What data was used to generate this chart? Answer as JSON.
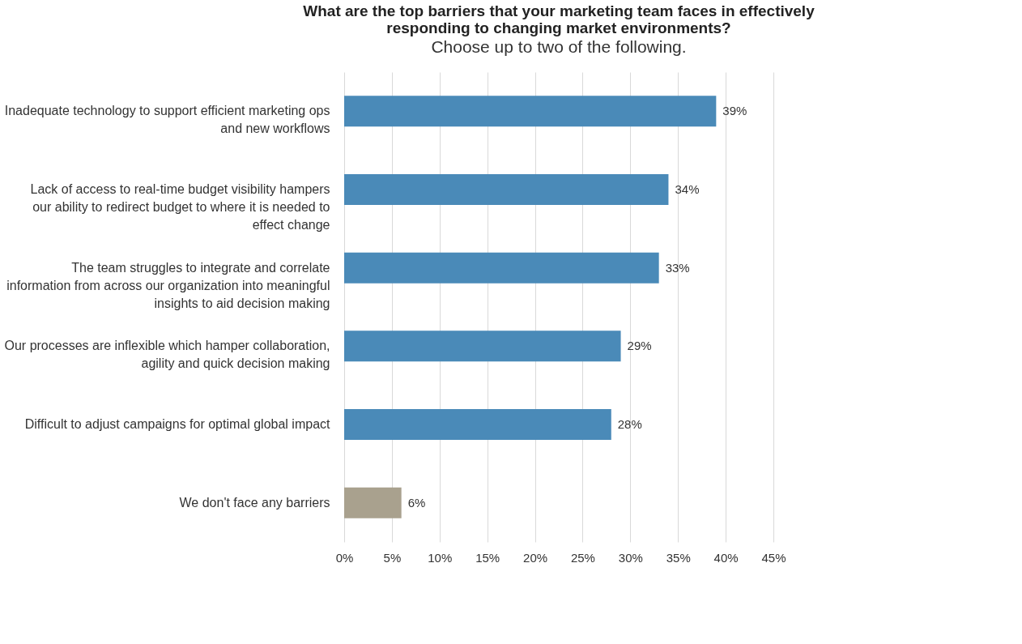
{
  "chart_data": {
    "type": "bar",
    "orientation": "horizontal",
    "title": "What are the top barriers that your marketing team faces in effectively responding to changing market environments?",
    "subtitle": "Choose up to two of the following.",
    "categories": [
      "Inadequate technology to support efficient marketing ops and new workflows",
      "Lack of access to real-time budget visibility hampers our ability to redirect budget to where it is needed to effect change",
      "The team struggles to integrate and correlate information from across our organization into meaningful insights to aid decision making",
      "Our processes are inflexible which hamper collaboration, agility and quick decision making",
      "Difficult to adjust campaigns for optimal global impact",
      "We don't face any barriers"
    ],
    "values": [
      39,
      34,
      33,
      29,
      28,
      6
    ],
    "colors": [
      "#4a8ab8",
      "#4a8ab8",
      "#4a8ab8",
      "#4a8ab8",
      "#4a8ab8",
      "#a9a18e"
    ],
    "value_labels": [
      "39%",
      "34%",
      "33%",
      "29%",
      "28%",
      "6%"
    ],
    "xlim": [
      0,
      45
    ],
    "xticks": [
      {
        "value": 0,
        "label": "0%"
      },
      {
        "value": 5,
        "label": "5%"
      },
      {
        "value": 10,
        "label": "10%"
      },
      {
        "value": 15,
        "label": "15%"
      },
      {
        "value": 20,
        "label": "20%"
      },
      {
        "value": 25,
        "label": "25%"
      },
      {
        "value": 30,
        "label": "30%"
      },
      {
        "value": 35,
        "label": "35%"
      },
      {
        "value": 40,
        "label": "40%"
      },
      {
        "value": 45,
        "label": "45%"
      }
    ],
    "grid": "x"
  }
}
